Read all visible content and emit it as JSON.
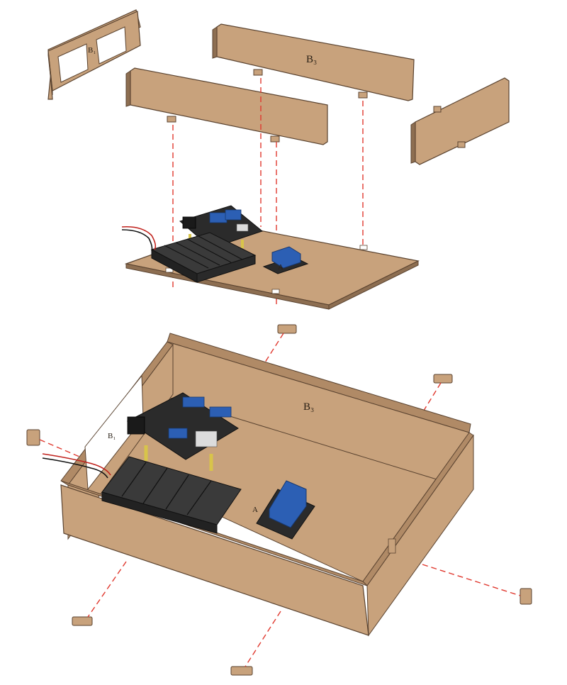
{
  "diagram": {
    "type": "exploded-assembly",
    "colors": {
      "wood": "#c8a27c",
      "wood_dark": "#8d6e51",
      "wood_edge": "#5a4330",
      "guide_line": "#e0392f",
      "pcb": "#2b2b2b",
      "connector_blue": "#2c5fb4",
      "standoff": "#d8c44a"
    },
    "labels": {
      "back_panel": "B₃",
      "inner_back_panel": "B₃",
      "left_panel_top": "B₁",
      "left_panel_bottom": "B₁",
      "base_relay_mark": "A"
    },
    "icons": [
      "side-panel",
      "long-panel",
      "base-plate",
      "control-board",
      "battery-holder",
      "relay-module",
      "connector-peg",
      "wire-pair"
    ]
  }
}
